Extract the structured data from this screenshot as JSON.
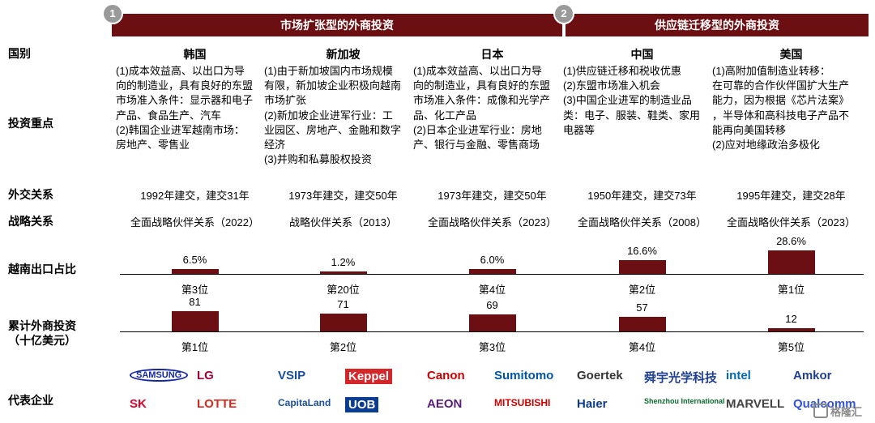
{
  "headers": {
    "group1_number": "1",
    "group1_title": "市场扩张型的外商投资",
    "group2_number": "2",
    "group2_title": "供应链迁移型的外商投资"
  },
  "row_labels": {
    "country": "国别",
    "focus": "投资重点",
    "diplomatic": "外交关系",
    "strategic": "战略关系",
    "export_share": "越南出口占比",
    "fdi_line1": "累计外商投资",
    "fdi_line2": "（十亿美元）",
    "companies": "代表企业"
  },
  "countries": [
    {
      "name": "韩国",
      "focus": [
        "(1)成本效益高、以出口为导",
        "向的制造业，具有良好的东盟",
        "市场准入条件：显示器和电子",
        "产品、食品生产、汽车",
        "(2)韩国企业进军越南市场：",
        "房地产、零售业"
      ],
      "diplomatic": "1992年建交，建交31年",
      "strategic": "全面战略伙伴关系（2022）",
      "export_share": 6.5,
      "export_label": "6.5%",
      "export_rank": "第3位",
      "fdi": 81,
      "fdi_label": "81",
      "fdi_rank": "第1位",
      "logos": [
        "SAMSUNG",
        "LG",
        "SK",
        "LOTTE"
      ]
    },
    {
      "name": "新加坡",
      "focus": [
        "(1)由于新加坡国内市场规模",
        "有限，新加坡企业积极向越南",
        "市场扩张",
        "(2)新加坡企业进军行业：工",
        "业园区、房地产、金融和数字",
        "经济",
        "(3)并购和私募股权投资"
      ],
      "diplomatic": "1973年建交，建交50年",
      "strategic": "战略伙伴关系（2013）",
      "export_share": 1.2,
      "export_label": "1.2%",
      "export_rank": "第20位",
      "fdi": 71,
      "fdi_label": "71",
      "fdi_rank": "第2位",
      "logos": [
        "VSIP",
        "Keppel",
        "CapitaLand",
        "UOB"
      ]
    },
    {
      "name": "日本",
      "focus": [
        "(1)成本效益高、以出口为导",
        "向的制造业，具有良好的东盟",
        "市场准入条件：成像和光学产",
        "品、化工产品",
        "(2)日本企业进军行业：房地",
        "产、银行与金融、零售商场"
      ],
      "diplomatic": "1973年建交，建交50年",
      "strategic": "全面战略伙伴关系（2023）",
      "export_share": 6.0,
      "export_label": "6.0%",
      "export_rank": "第4位",
      "fdi": 69,
      "fdi_label": "69",
      "fdi_rank": "第3位",
      "logos": [
        "Canon",
        "Sumitomo",
        "AEON",
        "MITSUBISHI"
      ]
    },
    {
      "name": "中国",
      "focus": [
        "(1)供应链迁移和税收优惠",
        "(2)东盟市场准入机会",
        "(3)中国企业进军的制造业品",
        "类：电子、服装、鞋类、家用",
        "电器等"
      ],
      "diplomatic": "1950年建交，建交73年",
      "strategic": "全面战略伙伴关系（2008）",
      "export_share": 16.6,
      "export_label": "16.6%",
      "export_rank": "第2位",
      "fdi": 57,
      "fdi_label": "57",
      "fdi_rank": "第4位",
      "logos": [
        "Goertek",
        "舜宇光学科技",
        "Haier",
        "Shenzhou International"
      ]
    },
    {
      "name": "美国",
      "focus": [
        "(1)高附加值制造业转移：",
        "在可靠的合作伙伴国扩大生产",
        "能力，因为根据《芯片法案》",
        "，半导体和高科技电子产品不",
        "能再向美国转移",
        "(2)应对地缘政治多极化"
      ],
      "diplomatic": "1995年建交，建交28年",
      "strategic": "全面战略伙伴关系（2023）",
      "export_share": 28.6,
      "export_label": "28.6%",
      "export_rank": "第1位",
      "fdi": 12,
      "fdi_label": "12",
      "fdi_rank": "第5位",
      "logos": [
        "intel",
        "Amkor",
        "MARVELL",
        "Qualcomm"
      ]
    }
  ],
  "watermark": "格隆汇",
  "colors": {
    "accent": "#6b0f12",
    "badge": "#9a9a9a"
  }
}
